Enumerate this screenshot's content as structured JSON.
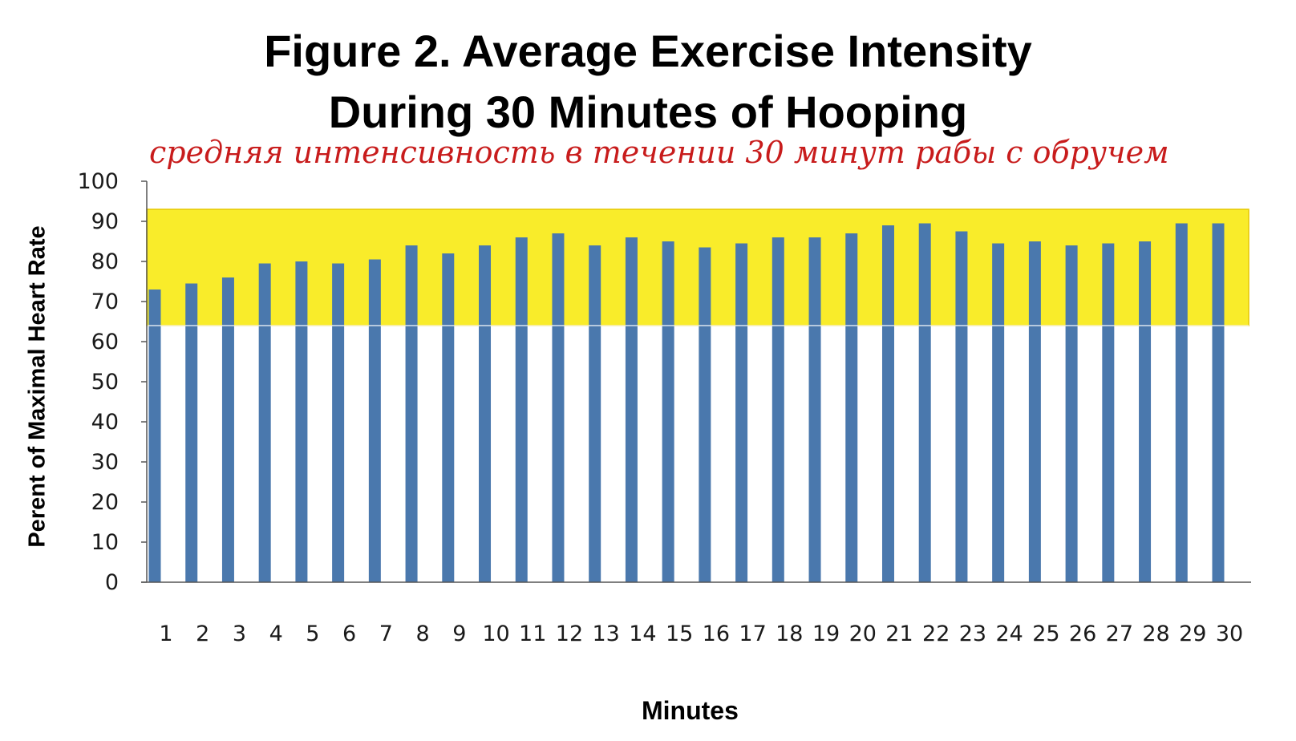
{
  "title_lines": [
    "Figure 2. Average Exercise Intensity",
    "During 30 Minutes of Hooping"
  ],
  "annotation": "средняя интенсивность в течении 30 минут рабы с обручем",
  "chart_data": {
    "type": "bar",
    "title": "Figure 2. Average Exercise Intensity During 30 Minutes of Hooping",
    "xlabel": "Minutes",
    "ylabel": "Perent of Maximal Heart Rate",
    "categories": [
      "1",
      "2",
      "3",
      "4",
      "5",
      "6",
      "7",
      "8",
      "9",
      "10",
      "11",
      "12",
      "13",
      "14",
      "15",
      "16",
      "17",
      "18",
      "19",
      "20",
      "21",
      "22",
      "23",
      "24",
      "25",
      "26",
      "27",
      "28",
      "29",
      "30"
    ],
    "values": [
      73,
      74.5,
      76,
      79.5,
      80,
      79.5,
      80.5,
      84,
      82,
      84,
      86,
      87,
      84,
      86,
      85,
      83.5,
      84.5,
      86,
      86,
      87,
      89,
      89.5,
      87.5,
      84.5,
      85,
      84,
      84.5,
      85,
      89.5,
      89.5
    ],
    "ylim": [
      0,
      100
    ],
    "yticks": [
      0,
      10,
      20,
      30,
      40,
      50,
      60,
      70,
      80,
      90,
      100
    ],
    "highlight_band": [
      64,
      93
    ],
    "colors": {
      "bar": "#4a78ad",
      "band": "#f9ec2a",
      "band_border": "#e6c800",
      "annotation": "#c81c1c"
    },
    "grid": false,
    "legend": "none"
  }
}
